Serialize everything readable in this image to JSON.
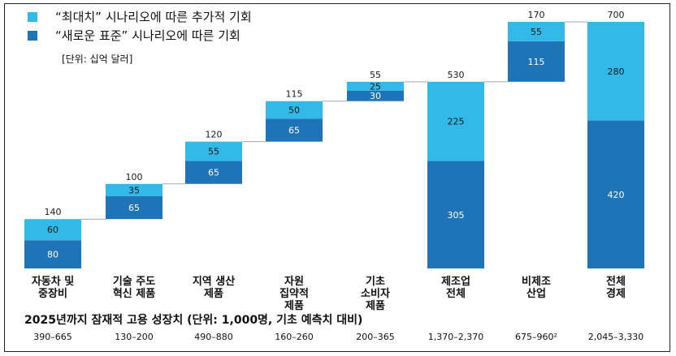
{
  "legend": {
    "items": [
      {
        "label": "“최대치” 시나리오에 따른 추가적 기회",
        "color": "#33b9e8"
      },
      {
        "label": "“새로운 표준” 시나리오에 따른 기회",
        "color": "#1f73b7"
      }
    ]
  },
  "unit_label": "[단위: 십억 달러]",
  "jobs": {
    "title": "2025년까지 잠재적 고용 성장치 (단위: 1,000명, 기초 예측치 대비)",
    "ranges": [
      "390–665",
      "130–200",
      "490–880",
      "160–260",
      "200–365",
      "1,370–2,370",
      "675–960²",
      "2,045–3,330"
    ]
  },
  "chart_data": {
    "type": "bar",
    "subtype": "waterfall-stacked",
    "title": "",
    "xlabel": "",
    "ylabel": "",
    "ylim": [
      0,
      700
    ],
    "grid": false,
    "legend_position": "top-left",
    "categories": [
      "자동차 및\n중장비",
      "기술 주도\n혁신 제품",
      "지역 생산\n제품",
      "자원\n집약적\n제품",
      "기초\n소비자\n제품",
      "제조업\n전체",
      "비제조\n산업",
      "전체\n경제"
    ],
    "series": [
      {
        "name": "“새로운 표준” 시나리오에 따른 기회",
        "values": [
          80,
          65,
          65,
          65,
          30,
          305,
          115,
          420
        ],
        "color": "#1f73b7"
      },
      {
        "name": "“최대치” 시나리오에 따른 추가적 기회",
        "values": [
          60,
          35,
          55,
          50,
          25,
          225,
          55,
          280
        ],
        "color": "#33b9e8"
      }
    ],
    "bases": [
      0,
      140,
      240,
      360,
      475,
      0,
      530,
      0
    ],
    "totals": [
      "140",
      "100",
      "120",
      "115",
      "55",
      "530",
      "170",
      "700"
    ],
    "connector_color": "#a9a9a9"
  }
}
